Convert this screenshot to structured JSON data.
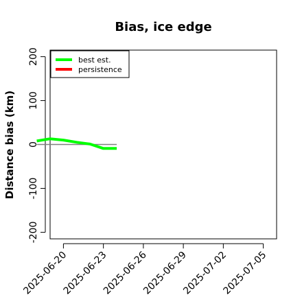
{
  "chart_data": {
    "type": "line",
    "title": "Bias, ice edge",
    "xlabel": "",
    "ylabel": "Distance bias (km)",
    "xlim": [
      "2025-06-19",
      "2025-07-06"
    ],
    "ylim": [
      -215,
      215
    ],
    "yticks": [
      -200,
      -100,
      0,
      100,
      200
    ],
    "xticks": [
      "2025-06-20",
      "2025-06-23",
      "2025-06-26",
      "2025-06-29",
      "2025-07-02",
      "2025-07-05"
    ],
    "reference_line": {
      "value": 0,
      "from": "2025-06-18",
      "to": "2025-06-24",
      "color": "#808080"
    },
    "legend_position": "top-left",
    "series": [
      {
        "name": "best est.",
        "color": "#00ff00",
        "x": [
          "2025-06-18",
          "2025-06-19",
          "2025-06-20",
          "2025-06-21",
          "2025-06-22",
          "2025-06-23",
          "2025-06-24"
        ],
        "y": [
          8,
          13,
          10,
          5,
          1,
          -9,
          -9
        ]
      },
      {
        "name": "persistence",
        "color": "#ff0000",
        "x": [],
        "y": []
      }
    ]
  }
}
